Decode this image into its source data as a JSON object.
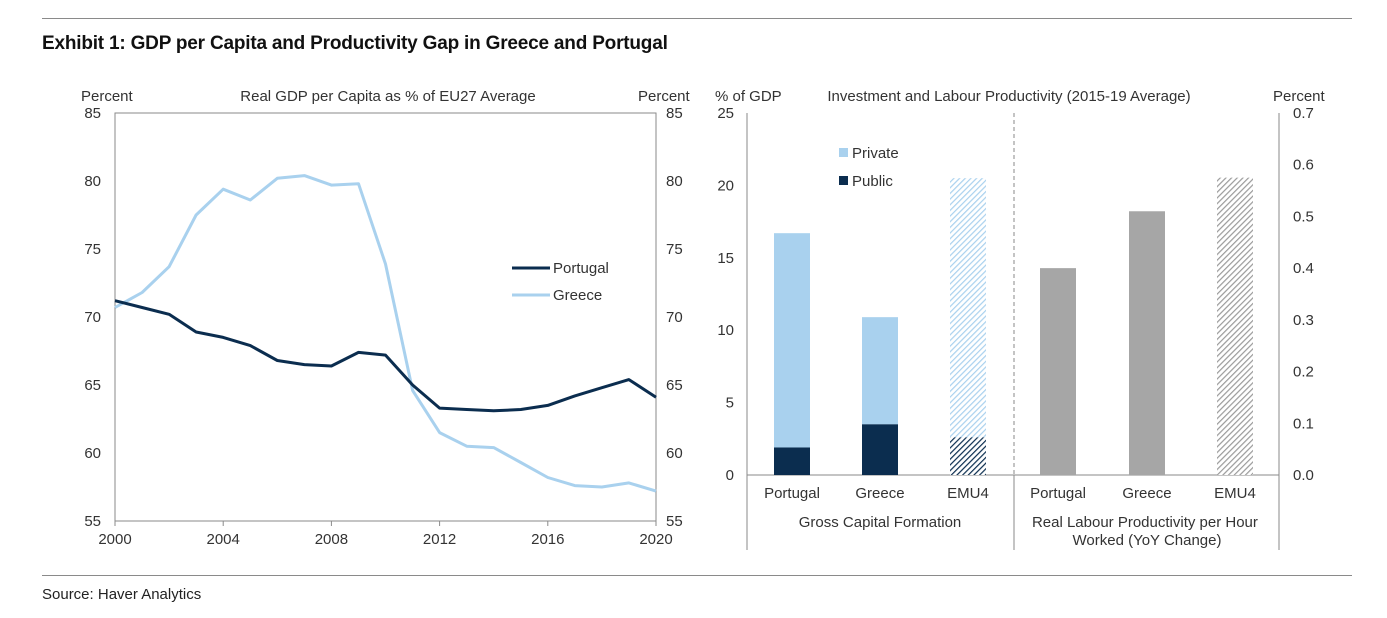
{
  "title": "Exhibit 1: GDP per Capita and Productivity Gap in Greece and Portugal",
  "source": "Source: Haver Analytics",
  "colors": {
    "portugal": "#0b2d4f",
    "greece": "#a9d1ee",
    "private": "#a9d1ee",
    "public": "#0b2d4f",
    "productivity": "#a6a6a6",
    "axis": "#8a8a8a"
  },
  "chart_data": [
    {
      "type": "line",
      "title": "Real GDP per Capita as % of EU27 Average",
      "ylabel_left": "Percent",
      "ylabel_right": "Percent",
      "ylim": [
        55,
        85
      ],
      "yticks": [
        "85",
        "80",
        "75",
        "70",
        "65",
        "60",
        "55"
      ],
      "xlim": [
        2000,
        2020
      ],
      "xticks": [
        "2000",
        "2004",
        "2008",
        "2012",
        "2016",
        "2020"
      ],
      "x": [
        2000,
        2001,
        2002,
        2003,
        2004,
        2005,
        2006,
        2007,
        2008,
        2009,
        2010,
        2011,
        2012,
        2013,
        2014,
        2015,
        2016,
        2017,
        2018,
        2019,
        2020
      ],
      "series": [
        {
          "name": "Portugal",
          "values": [
            71.2,
            70.7,
            70.2,
            68.9,
            68.5,
            67.9,
            66.8,
            66.5,
            66.4,
            67.4,
            67.2,
            65.0,
            63.3,
            63.2,
            63.1,
            63.2,
            63.5,
            64.2,
            64.8,
            65.4,
            64.1
          ]
        },
        {
          "name": "Greece",
          "values": [
            70.7,
            71.8,
            73.7,
            77.5,
            79.4,
            78.6,
            80.2,
            80.4,
            79.7,
            79.8,
            73.9,
            64.6,
            61.5,
            60.5,
            60.4,
            59.3,
            58.2,
            57.6,
            57.5,
            57.8,
            57.2
          ]
        }
      ],
      "legend": [
        "Portugal",
        "Greece"
      ],
      "legend_position": "right"
    },
    {
      "type": "bar",
      "stacked": true,
      "title": "Investment and Labour Productivity (2015-19 Average)",
      "group_label": "Gross Capital Formation",
      "ylabel": "% of GDP",
      "ylim": [
        0,
        25
      ],
      "yticks": [
        "25",
        "20",
        "15",
        "10",
        "5",
        "0"
      ],
      "categories": [
        "Portugal",
        "Greece",
        "EMU4"
      ],
      "series": [
        {
          "name": "Public",
          "values": [
            1.9,
            3.5,
            2.6
          ]
        },
        {
          "name": "Private",
          "values": [
            14.8,
            7.4,
            17.9
          ]
        }
      ],
      "hatched_categories": [
        "EMU4"
      ],
      "legend": [
        "Private",
        "Public"
      ],
      "legend_position": "top-left"
    },
    {
      "type": "bar",
      "group_label": "Real Labour Productivity per Hour Worked (YoY Change)",
      "ylabel": "Percent",
      "ylim": [
        0,
        0.7
      ],
      "yticks": [
        "0.7",
        "0.6",
        "0.5",
        "0.4",
        "0.3",
        "0.2",
        "0.1",
        "0.0"
      ],
      "categories": [
        "Portugal",
        "Greece",
        "EMU4"
      ],
      "values": [
        0.4,
        0.51,
        0.575
      ],
      "hatched_categories": [
        "EMU4"
      ]
    }
  ]
}
